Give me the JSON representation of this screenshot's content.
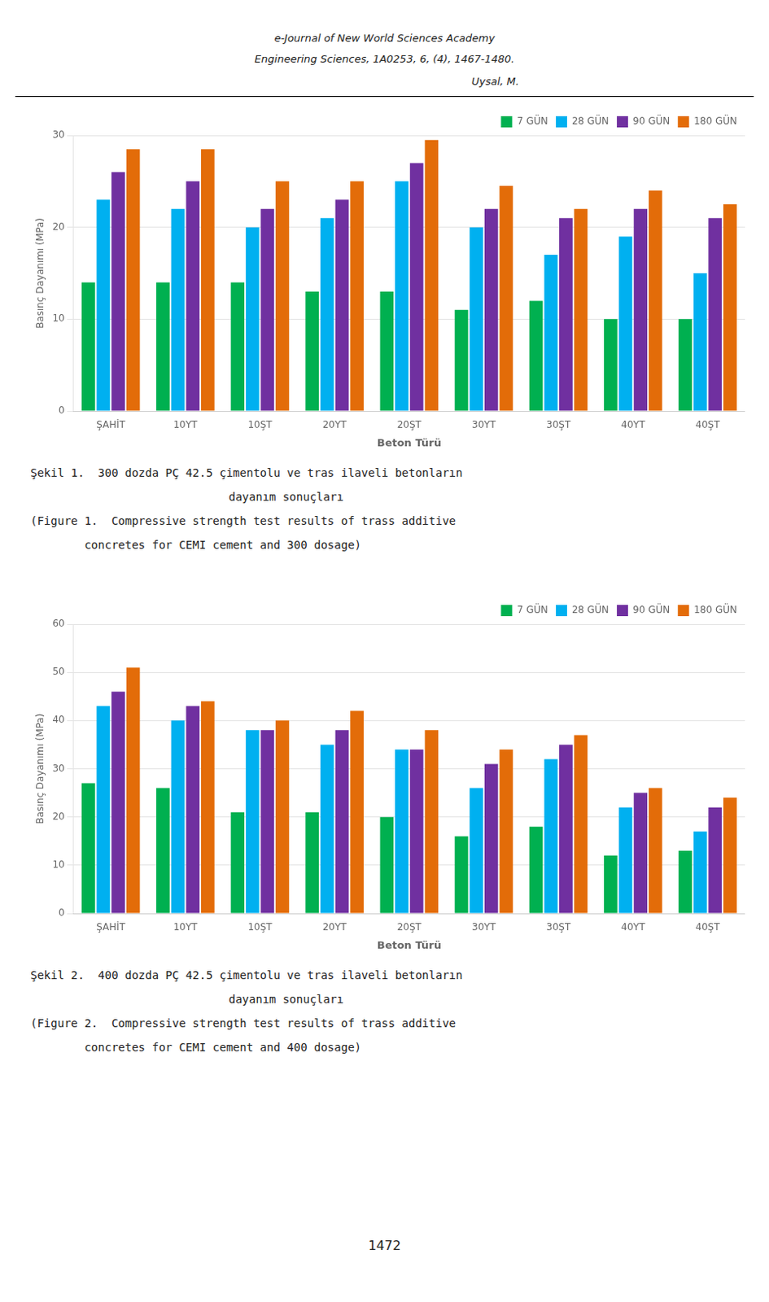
{
  "header": [
    "e-Journal of New World Sciences Academy",
    "Engineering Sciences, 1A0253, 6, (4), 1467-1480.",
    "Uysal, M."
  ],
  "chart_data": [
    {
      "type": "bar",
      "xlabel": "Beton Türü",
      "ylabel": "Basınç Dayanımı (MPa)",
      "categories": [
        "ŞAHİT",
        "10YT",
        "10ŞT",
        "20YT",
        "20ŞT",
        "30YT",
        "30ŞT",
        "40YT",
        "40ŞT"
      ],
      "series": [
        {
          "name": "7 GÜN",
          "color": "#00b050",
          "values": [
            14,
            14,
            14,
            13,
            13,
            11,
            12,
            10,
            10
          ]
        },
        {
          "name": "28 GÜN",
          "color": "#00b0f0",
          "values": [
            23,
            22,
            20,
            21,
            25,
            20,
            17,
            19,
            15
          ]
        },
        {
          "name": "90 GÜN",
          "color": "#7030a0",
          "values": [
            26,
            25,
            22,
            23,
            27,
            22,
            21,
            22,
            21
          ]
        },
        {
          "name": "180 GÜN",
          "color": "#e36c09",
          "values": [
            28.5,
            28.5,
            25,
            25,
            29.5,
            24.5,
            22,
            24,
            22.5
          ]
        }
      ],
      "ylim": [
        0,
        30
      ],
      "yticks": [
        0,
        10,
        20,
        30
      ],
      "grid": "y",
      "legend": "upper right",
      "annotations": [
        "Şekil 1.  300 dozda PÇ 42.5 çimentolu ve tras ilaveli betonların",
        "dayanım sonuçları",
        "(Figure 1.  Compressive strength test results of trass additive",
        "        concretes for CEMI cement and 300 dosage)"
      ]
    },
    {
      "type": "bar",
      "xlabel": "Beton Türü",
      "ylabel": "Basınç Dayanımı (MPa)",
      "categories": [
        "ŞAHİT",
        "10YT",
        "10ŞT",
        "20YT",
        "20ŞT",
        "30YT",
        "30ŞT",
        "40YT",
        "40ŞT"
      ],
      "series": [
        {
          "name": "7 GÜN",
          "color": "#00b050",
          "values": [
            27,
            26,
            21,
            21,
            20,
            16,
            18,
            12,
            13
          ]
        },
        {
          "name": "28 GÜN",
          "color": "#00b0f0",
          "values": [
            43,
            40,
            38,
            35,
            34,
            26,
            32,
            22,
            17
          ]
        },
        {
          "name": "90 GÜN",
          "color": "#7030a0",
          "values": [
            46,
            43,
            38,
            38,
            34,
            31,
            35,
            25,
            22
          ]
        },
        {
          "name": "180 GÜN",
          "color": "#e36c09",
          "values": [
            51,
            44,
            40,
            42,
            38,
            34,
            37,
            26,
            24
          ]
        }
      ],
      "ylim": [
        0,
        60
      ],
      "yticks": [
        0,
        10,
        20,
        30,
        40,
        50,
        60
      ],
      "grid": "y",
      "legend": "upper right",
      "annotations": [
        "Şekil 2.  400 dozda PÇ 42.5 çimentolu ve tras ilaveli betonların",
        "dayanım sonuçları",
        "(Figure 2.  Compressive strength test results of trass additive",
        "        concretes for CEMI cement and 400 dosage)"
      ]
    }
  ],
  "page_number": "1472"
}
